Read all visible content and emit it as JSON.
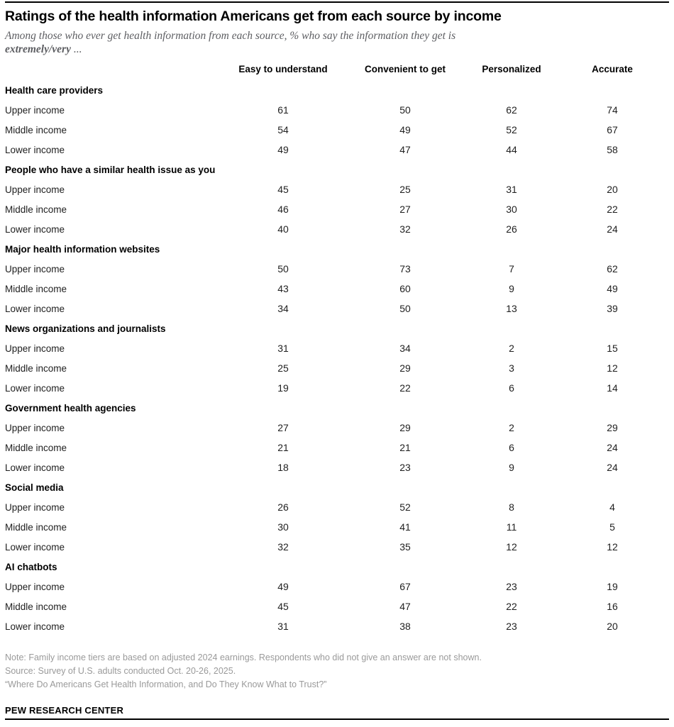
{
  "chart_data": {
    "type": "table",
    "title": "Ratings of the health information Americans get from each source by income",
    "subtitle": "Among those who ever get health information from each source, % who say the information they get is extremely/very ...",
    "columns": [
      "Easy to understand",
      "Convenient to get",
      "Personalized",
      "Accurate"
    ],
    "sections": [
      {
        "label": "Health care providers",
        "rows": [
          {
            "label": "Upper income",
            "values": [
              61,
              50,
              62,
              74
            ]
          },
          {
            "label": "Middle income",
            "values": [
              54,
              49,
              52,
              67
            ]
          },
          {
            "label": "Lower income",
            "values": [
              49,
              47,
              44,
              58
            ]
          }
        ]
      },
      {
        "label": "People who have a similar health issue as you",
        "rows": [
          {
            "label": "Upper income",
            "values": [
              45,
              25,
              31,
              20
            ]
          },
          {
            "label": "Middle income",
            "values": [
              46,
              27,
              30,
              22
            ]
          },
          {
            "label": "Lower income",
            "values": [
              40,
              32,
              26,
              24
            ]
          }
        ]
      },
      {
        "label": "Major health information websites",
        "rows": [
          {
            "label": "Upper income",
            "values": [
              50,
              73,
              7,
              62
            ]
          },
          {
            "label": "Middle income",
            "values": [
              43,
              60,
              9,
              49
            ]
          },
          {
            "label": "Lower income",
            "values": [
              34,
              50,
              13,
              39
            ]
          }
        ]
      },
      {
        "label": "News organizations and journalists",
        "rows": [
          {
            "label": "Upper income",
            "values": [
              31,
              34,
              2,
              15
            ]
          },
          {
            "label": "Middle income",
            "values": [
              25,
              29,
              3,
              12
            ]
          },
          {
            "label": "Lower income",
            "values": [
              19,
              22,
              6,
              14
            ]
          }
        ]
      },
      {
        "label": "Government health agencies",
        "rows": [
          {
            "label": "Upper income",
            "values": [
              27,
              29,
              2,
              29
            ]
          },
          {
            "label": "Middle income",
            "values": [
              21,
              21,
              6,
              24
            ]
          },
          {
            "label": "Lower income",
            "values": [
              18,
              23,
              9,
              24
            ]
          }
        ]
      },
      {
        "label": "Social media",
        "rows": [
          {
            "label": "Upper income",
            "values": [
              26,
              52,
              8,
              4
            ]
          },
          {
            "label": "Middle income",
            "values": [
              30,
              41,
              11,
              5
            ]
          },
          {
            "label": "Lower income",
            "values": [
              32,
              35,
              12,
              12
            ]
          }
        ]
      },
      {
        "label": "AI chatbots",
        "rows": [
          {
            "label": "Upper income",
            "values": [
              49,
              67,
              23,
              19
            ]
          },
          {
            "label": "Middle income",
            "values": [
              45,
              47,
              22,
              16
            ]
          },
          {
            "label": "Lower income",
            "values": [
              31,
              38,
              23,
              20
            ]
          }
        ]
      }
    ]
  },
  "subtitle_parts": {
    "line1": "Among those who ever get health information from each source, % who say the information they get is",
    "line2_bold": "extremely/very",
    "line2_tail": " ..."
  },
  "footer": {
    "note": "Note: Family income tiers are based on adjusted 2024 earnings. Respondents who did not give an answer are not shown.",
    "source": "Source: Survey of U.S. adults conducted Oct. 20-26, 2025.",
    "report": "“Where Do Americans Get Health Information, and Do They Know What to Trust?”",
    "brand": "PEW RESEARCH CENTER"
  },
  "colors": {
    "rule": "#000000",
    "title_text": "#000000",
    "subtitle_text": "#5d5e62",
    "body_text": "#1f1f1f",
    "footer_text": "#9a9a9a"
  }
}
